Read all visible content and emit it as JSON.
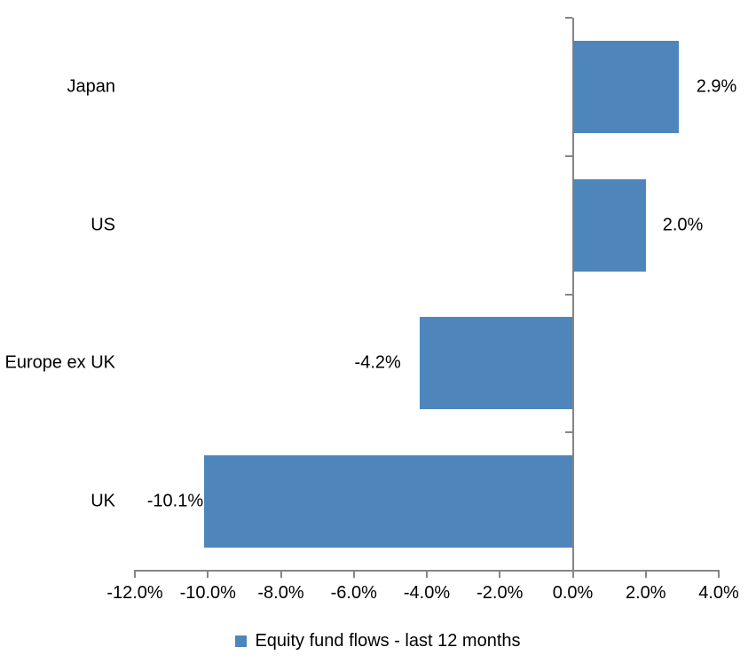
{
  "chart_data": {
    "type": "bar",
    "orientation": "horizontal",
    "title": "",
    "xlabel": "",
    "ylabel": "",
    "categories": [
      "Japan",
      "US",
      "Europe ex UK",
      "UK"
    ],
    "values": [
      2.9,
      2.0,
      -4.2,
      -10.1
    ],
    "value_labels": [
      "2.9%",
      "2.0%",
      "-4.2%",
      "-10.1%"
    ],
    "series_name": "Equity fund flows - last 12 months",
    "xlim": [
      -12,
      4
    ],
    "x_ticks": [
      -12,
      -10,
      -8,
      -6,
      -4,
      -2,
      0,
      2,
      4
    ],
    "x_tick_labels": [
      "-12.0%",
      "-10.0%",
      "-8.0%",
      "-6.0%",
      "-4.0%",
      "-2.0%",
      "0.0%",
      "2.0%",
      "4.0%"
    ],
    "grid": false,
    "legend_position": "bottom",
    "bar_color": "#4E86BC",
    "axis_color": "#858585",
    "text_color": "#000000"
  }
}
